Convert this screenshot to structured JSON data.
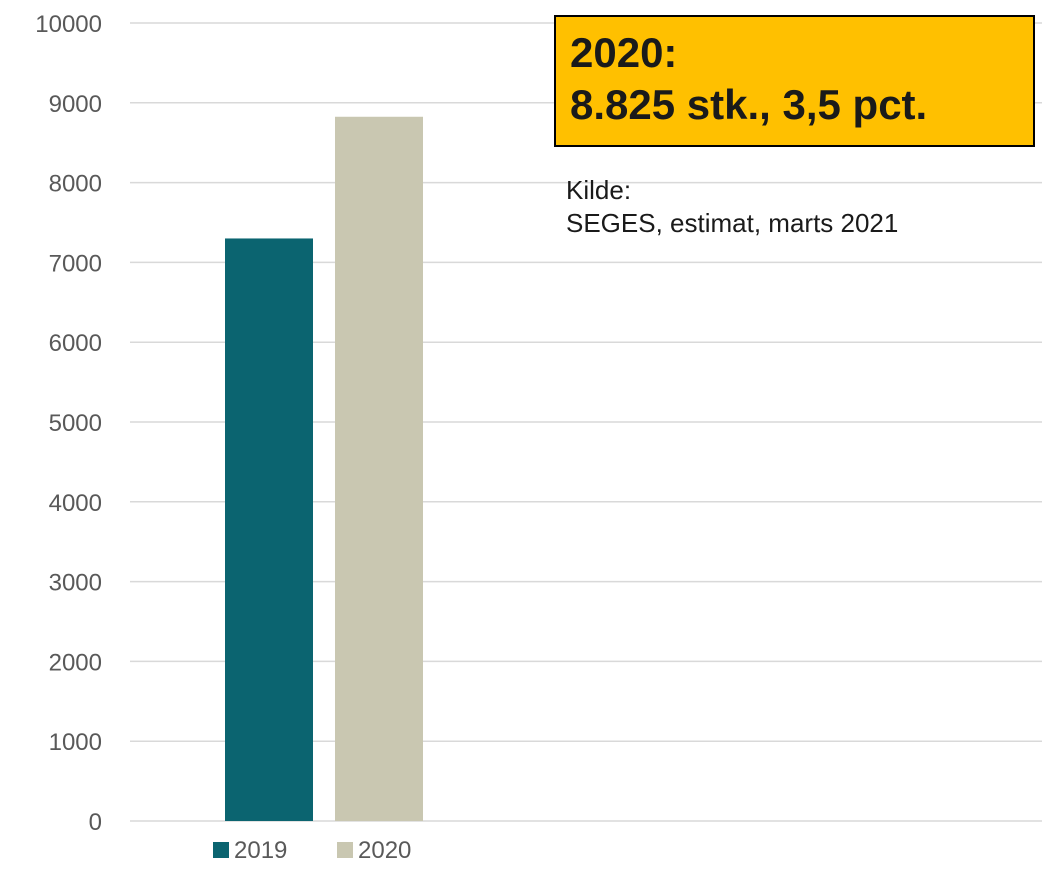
{
  "chart_data": {
    "type": "bar",
    "categories": [
      ""
    ],
    "series": [
      {
        "name": "2019",
        "values": [
          7300
        ],
        "color": "#0B6470"
      },
      {
        "name": "2020",
        "values": [
          8825
        ],
        "color": "#C9C7B1"
      }
    ],
    "title": "",
    "xlabel": "",
    "ylabel": "",
    "ylim": [
      0,
      10000
    ],
    "yticks": [
      "0",
      "1000",
      "2000",
      "3000",
      "4000",
      "5000",
      "6000",
      "7000",
      "8000",
      "9000",
      "10000"
    ],
    "grid": true,
    "legend_position": "bottom-left"
  },
  "callout": {
    "line1": "2020:",
    "line2": "8.825 stk., 3,5 pct.",
    "background": "#FFC000"
  },
  "source_note": {
    "line1": "Kilde:",
    "line2": "SEGES, estimat, marts  2021"
  },
  "colors": {
    "gridline": "#D9D9D9",
    "axis_text": "#595959"
  }
}
